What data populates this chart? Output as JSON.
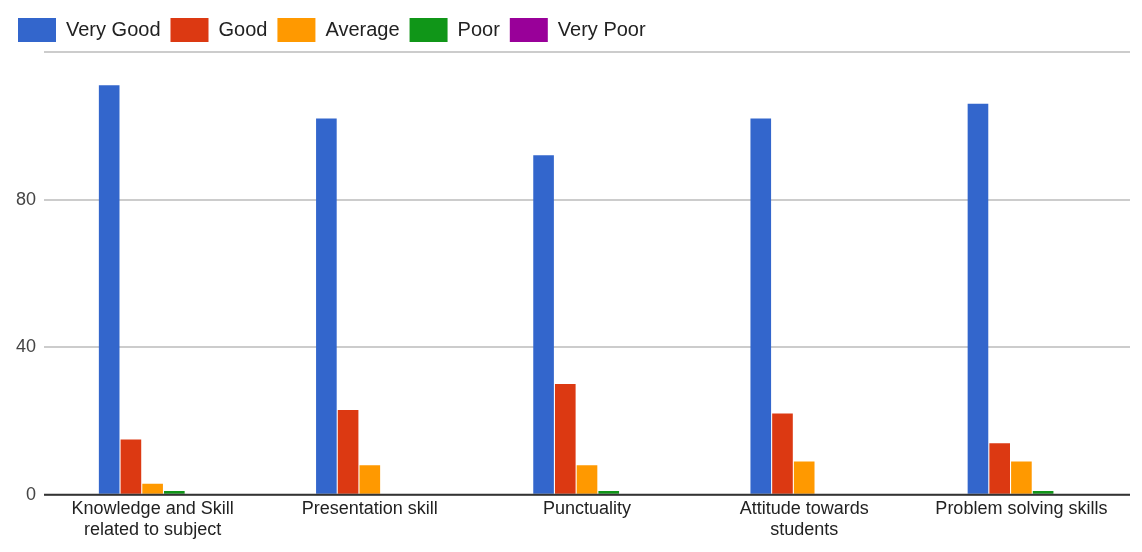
{
  "chart_data": {
    "type": "bar",
    "categories": [
      "Knowledge and Skill related to subject",
      "Presentation skill",
      "Punctuality",
      "Attitude towards students",
      "Problem solving skills"
    ],
    "series": [
      {
        "name": "Very Good",
        "color": "#3366cc",
        "values": [
          111,
          102,
          92,
          102,
          106
        ]
      },
      {
        "name": "Good",
        "color": "#dc3912",
        "values": [
          15,
          23,
          30,
          22,
          14
        ]
      },
      {
        "name": "Average",
        "color": "#ff9900",
        "values": [
          3,
          8,
          8,
          9,
          9
        ]
      },
      {
        "name": "Poor",
        "color": "#109618",
        "values": [
          1,
          0,
          1,
          0,
          1
        ]
      },
      {
        "name": "Very Poor",
        "color": "#990099",
        "values": [
          0,
          0,
          0,
          0,
          0
        ]
      }
    ],
    "ylim": [
      0,
      120
    ],
    "yticks": [
      0,
      40,
      80,
      {
        "value": 120,
        "label": null
      }
    ],
    "grid": "y",
    "legend": "top left"
  }
}
